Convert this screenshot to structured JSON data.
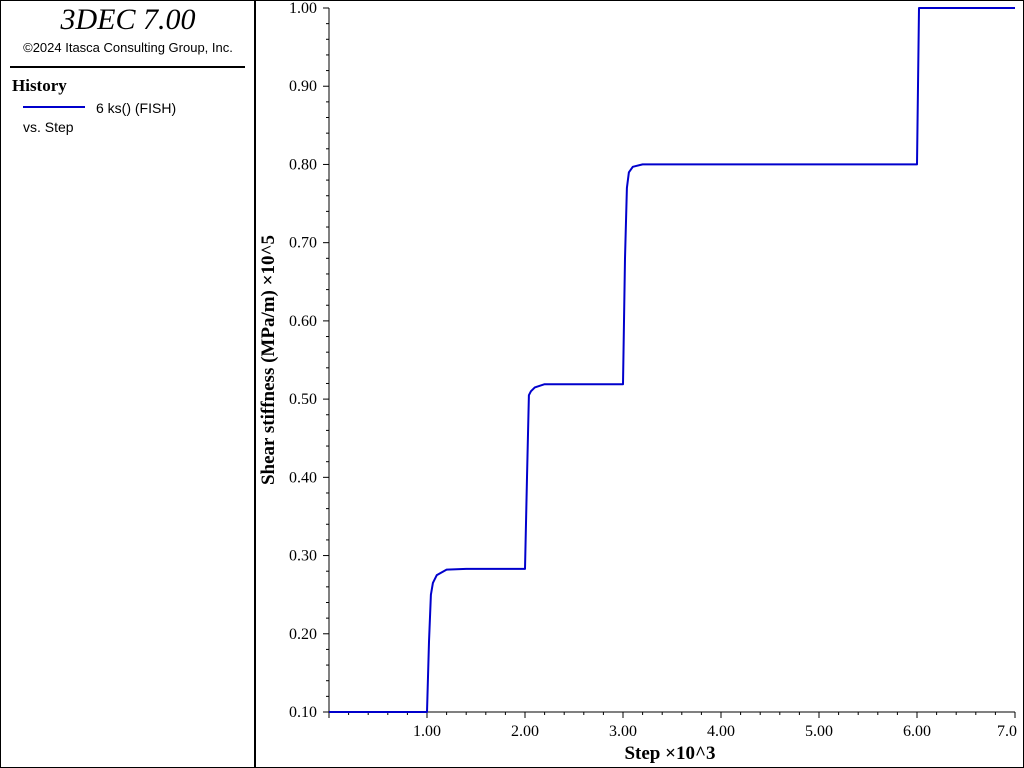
{
  "header": {
    "app_title": "3DEC 7.00",
    "copyright": "©2024 Itasca Consulting Group, Inc."
  },
  "legend": {
    "heading": "History",
    "entry_label": "6 ks() (FISH)",
    "entry_sub": "vs. Step",
    "entry_color": "#0000cc"
  },
  "chart_data": {
    "type": "line",
    "xlabel": "Step ×10^3",
    "ylabel": "Shear stiffness (MPa/m) ×10^5",
    "xlim": [
      0,
      7
    ],
    "ylim": [
      0.1,
      1.0
    ],
    "xticks": [
      "1.00",
      "2.00",
      "3.00",
      "4.00",
      "5.00",
      "6.00",
      "7.0"
    ],
    "yticks": [
      "0.10",
      "0.20",
      "0.30",
      "0.40",
      "0.50",
      "0.60",
      "0.70",
      "0.80",
      "0.90",
      "1.00"
    ],
    "grid": false,
    "series": [
      {
        "name": "6 ks() (FISH)",
        "color": "#0000cc",
        "x": [
          0.0,
          1.0,
          1.02,
          1.04,
          1.06,
          1.1,
          1.2,
          1.4,
          2.0,
          2.02,
          2.04,
          2.06,
          2.1,
          2.2,
          2.4,
          3.0,
          3.02,
          3.04,
          3.06,
          3.1,
          3.2,
          3.4,
          6.0,
          6.02,
          7.0
        ],
        "y": [
          0.1,
          0.1,
          0.19,
          0.25,
          0.265,
          0.275,
          0.282,
          0.283,
          0.283,
          0.4,
          0.505,
          0.51,
          0.515,
          0.519,
          0.519,
          0.519,
          0.68,
          0.77,
          0.79,
          0.797,
          0.8,
          0.8,
          0.8,
          1.0,
          1.0
        ]
      }
    ]
  }
}
